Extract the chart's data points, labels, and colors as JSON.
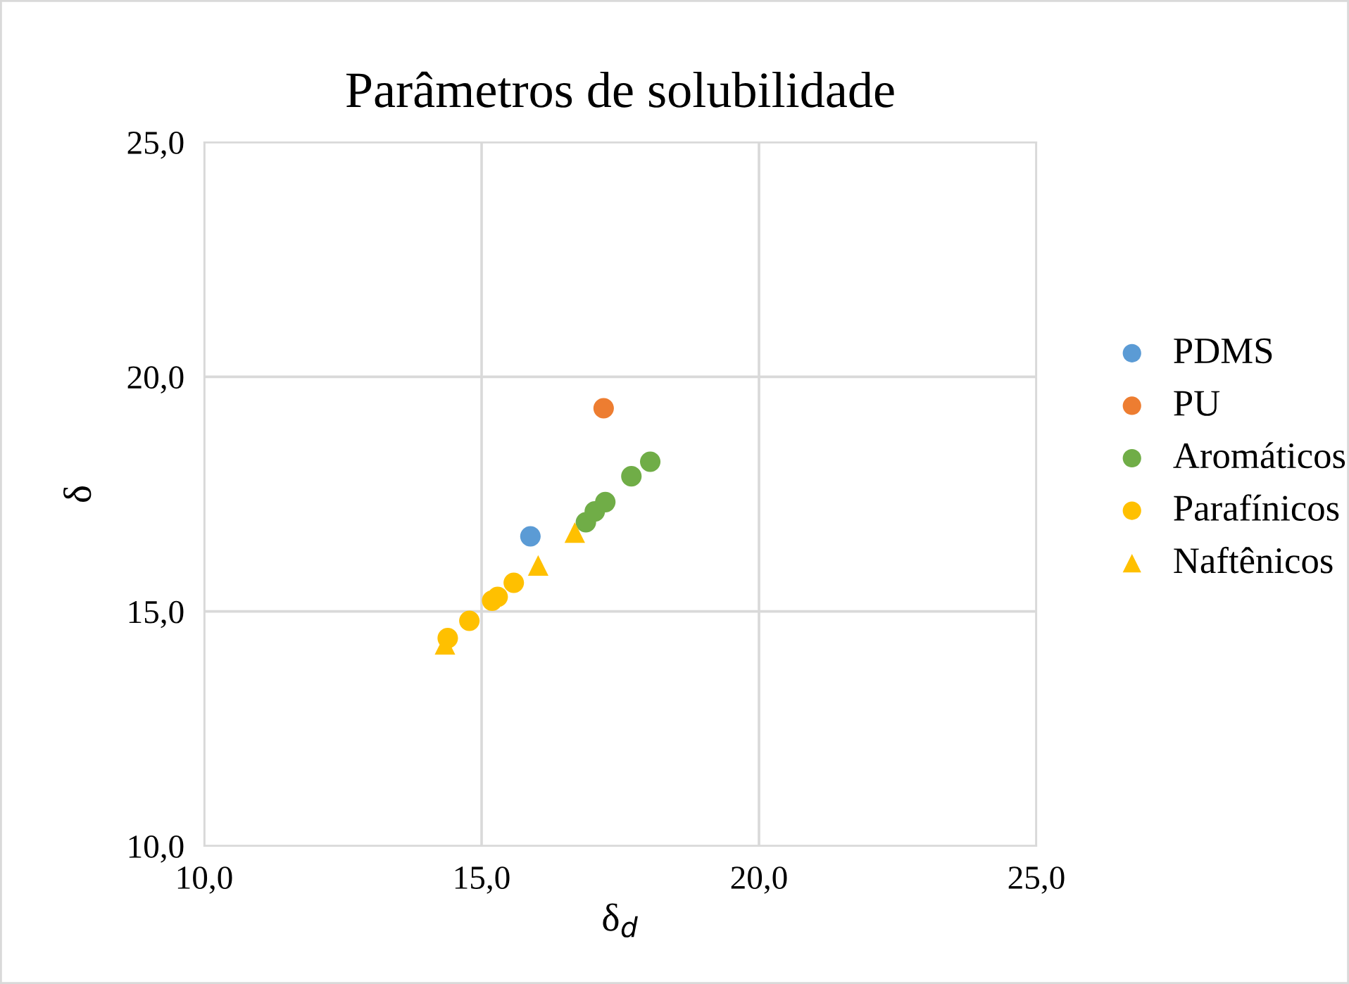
{
  "chart_data": {
    "type": "scatter",
    "title": "Parâmetros de solubilidade",
    "xlabel": "δ$_{d}$",
    "ylabel": "δ",
    "xlim": [
      10,
      25
    ],
    "ylim": [
      10,
      25
    ],
    "xticks": [
      {
        "value": 10,
        "label": "10,0"
      },
      {
        "value": 15,
        "label": "15,0"
      },
      {
        "value": 20,
        "label": "20,0"
      },
      {
        "value": 25,
        "label": "25,0"
      }
    ],
    "yticks": [
      {
        "value": 10,
        "label": "10,0"
      },
      {
        "value": 15,
        "label": "15,0"
      },
      {
        "value": 20,
        "label": "20,0"
      },
      {
        "value": 25,
        "label": "25,0"
      }
    ],
    "grid": true,
    "legend": "right",
    "marker": "circle",
    "series": [
      {
        "name": "PDMS",
        "color": "#5b9bd5",
        "x": [
          15.88
        ],
        "values": [
          16.6
        ]
      },
      {
        "name": "PU",
        "color": "#ed7d31",
        "x": [
          17.2
        ],
        "values": [
          19.33
        ]
      },
      {
        "name": "Aromáticos",
        "color": "#70ad47",
        "x": [
          16.88,
          17.04,
          17.23,
          17.7,
          18.04
        ],
        "values": [
          16.9,
          17.13,
          17.33,
          17.88,
          18.19
        ]
      },
      {
        "name": "Parafínicos",
        "color": "#ffc000",
        "x": [
          14.39,
          14.78,
          15.19,
          15.29,
          15.58
        ],
        "values": [
          14.43,
          14.8,
          15.23,
          15.31,
          15.61
        ]
      },
      {
        "name": "Naftênicos",
        "color": "#ffc000",
        "marker": "triangle",
        "x": [
          14.34,
          16.02,
          16.68
        ],
        "values": [
          14.3,
          15.98,
          16.68
        ]
      }
    ]
  }
}
